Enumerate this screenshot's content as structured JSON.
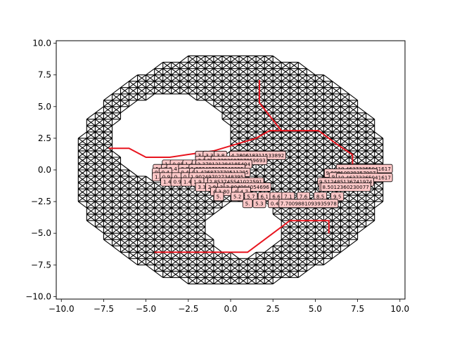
{
  "chart_data": {
    "type": "scatter",
    "title": "",
    "xlabel": "",
    "ylabel": "",
    "xlim": [
      -10.3,
      10.3
    ],
    "ylim": [
      -10.2,
      10.2
    ],
    "xticks": [
      -10.0,
      -7.5,
      -5.0,
      -2.5,
      0.0,
      2.5,
      5.0,
      7.5,
      10.0
    ],
    "yticks": [
      -10.0,
      -7.5,
      -5.0,
      -2.5,
      0.0,
      2.5,
      5.0,
      7.5,
      10.0
    ],
    "xtick_labels": [
      "−10.0",
      "−7.5",
      "−5.0",
      "−2.5",
      "0.0",
      "2.5",
      "5.0",
      "7.5",
      "10.0"
    ],
    "ytick_labels": [
      "−10.0",
      "−7.5",
      "−5.0",
      "−2.5",
      "0.0",
      "2.5",
      "5.0",
      "7.5",
      "10.0"
    ],
    "grid": false,
    "mesh": {
      "spacing": 0.5,
      "outer_radius": 9.4,
      "edge_color": "#000000",
      "holes": [
        {
          "center": [
            -3.5,
            2.5
          ],
          "radius": 3.3
        },
        {
          "center": [
            0.8,
            -4.6
          ],
          "radius": 2.0
        }
      ]
    },
    "path": {
      "color": "#e8141e",
      "points": [
        [
          -7.2,
          1.7
        ],
        [
          -6.0,
          1.7
        ],
        [
          -5.0,
          1.0
        ],
        [
          -3.6,
          1.0
        ],
        [
          -2.6,
          1.2
        ],
        [
          -1.0,
          1.5
        ],
        [
          1.5,
          2.5
        ],
        [
          2.3,
          3.1
        ],
        [
          5.2,
          3.1
        ],
        [
          6.2,
          2.1
        ],
        [
          7.2,
          1.2
        ],
        [
          7.2,
          0.0
        ]
      ],
      "branches": [
        [
          [
            1.7,
            7.1
          ],
          [
            1.7,
            5.3
          ],
          [
            3.0,
            3.1
          ]
        ],
        [
          [
            -4.5,
            -6.5
          ],
          [
            1.0,
            -6.5
          ],
          [
            3.5,
            -4.0
          ],
          [
            5.8,
            -4.0
          ],
          [
            5.8,
            -5.0
          ]
        ]
      ]
    },
    "annotations": {
      "box_color": "#ffc8c8",
      "labels": [
        {
          "x": -1.7,
          "y": 1.15,
          "text": "3.3"
        },
        {
          "x": -1.25,
          "y": 1.15,
          "text": "3.3"
        },
        {
          "x": -0.6,
          "y": 1.15,
          "text": "3.8"
        },
        {
          "x": 1.6,
          "y": 1.15,
          "text": "4.280618311533892"
        },
        {
          "x": -1.7,
          "y": 0.75,
          "text": "3.3"
        },
        {
          "x": -1.25,
          "y": 0.75,
          "text": "2."
        },
        {
          "x": 0.5,
          "y": 0.75,
          "text": "3.329369797859693"
        },
        {
          "x": -3.75,
          "y": 0.45,
          "text": "1."
        },
        {
          "x": -3.1,
          "y": 0.45,
          "text": "0.95"
        },
        {
          "x": -2.45,
          "y": 0.45,
          "text": "1.4"
        },
        {
          "x": -1.9,
          "y": 0.45,
          "text": "1.9"
        },
        {
          "x": -0.4,
          "y": 0.45,
          "text": "2.378121284185494"
        },
        {
          "x": -4.2,
          "y": 0.1,
          "text": "1.4"
        },
        {
          "x": -3.8,
          "y": 0.1,
          "text": "0."
        },
        {
          "x": -3.4,
          "y": 0.1,
          "text": "0.4"
        },
        {
          "x": -2.7,
          "y": 0.1,
          "text": "0.9"
        },
        {
          "x": -2.05,
          "y": 0.1,
          "text": "1.4"
        },
        {
          "x": -0.8,
          "y": 0.1,
          "text": "1.902497027348395"
        },
        {
          "x": -4.25,
          "y": -0.2,
          "text": "0.9"
        },
        {
          "x": -3.85,
          "y": -0.2,
          "text": "0.4"
        },
        {
          "x": -2.7,
          "y": -0.2,
          "text": "0.4"
        },
        {
          "x": -2.05,
          "y": -0.2,
          "text": "0.9"
        },
        {
          "x": -0.5,
          "y": -0.2,
          "text": "1.426872770511295"
        },
        {
          "x": -4.25,
          "y": -0.55,
          "text": "1.4"
        },
        {
          "x": -3.8,
          "y": -0.55,
          "text": "0.9"
        },
        {
          "x": -3.2,
          "y": -0.55,
          "text": "0."
        },
        {
          "x": -2.55,
          "y": -0.55,
          "text": "0.9"
        },
        {
          "x": -1.95,
          "y": -0.55,
          "text": "1.4"
        },
        {
          "x": -0.8,
          "y": -0.55,
          "text": "1.902497027348395"
        },
        {
          "x": -3.75,
          "y": -0.95,
          "text": "1.4"
        },
        {
          "x": -3.15,
          "y": -0.95,
          "text": "0.9"
        },
        {
          "x": -2.55,
          "y": -0.95,
          "text": "1.4"
        },
        {
          "x": -1.95,
          "y": -0.95,
          "text": "1.9"
        },
        {
          "x": -1.2,
          "y": -0.95,
          "text": "2.3"
        },
        {
          "x": 0.3,
          "y": -0.95,
          "text": "2.853745541022591"
        },
        {
          "x": -1.7,
          "y": -1.35,
          "text": "3.3"
        },
        {
          "x": -1.1,
          "y": -1.35,
          "text": "2.8"
        },
        {
          "x": -0.4,
          "y": -1.35,
          "text": "3.3"
        },
        {
          "x": 1.0,
          "y": -1.35,
          "text": "3.804994054696"
        },
        {
          "x": -0.9,
          "y": -1.7,
          "text": "4."
        },
        {
          "x": -0.4,
          "y": -1.7,
          "text": "3.80"
        },
        {
          "x": 0.35,
          "y": -1.7,
          "text": "4."
        },
        {
          "x": 0.8,
          "y": -1.7,
          "text": "4.7"
        },
        {
          "x": -0.7,
          "y": -2.1,
          "text": "5."
        },
        {
          "x": 0.4,
          "y": -2.1,
          "text": "5.2"
        },
        {
          "x": 1.2,
          "y": -2.1,
          "text": "5.7"
        },
        {
          "x": 2.0,
          "y": -2.1,
          "text": "6.1"
        },
        {
          "x": 2.7,
          "y": -2.1,
          "text": "6.6"
        },
        {
          "x": 3.4,
          "y": -2.1,
          "text": "7.1"
        },
        {
          "x": 4.3,
          "y": -2.1,
          "text": "7.6"
        },
        {
          "x": 5.3,
          "y": -2.1,
          "text": "8.5"
        },
        {
          "x": 6.3,
          "y": -2.1,
          "text": "9.5"
        },
        {
          "x": 7.9,
          "y": 0.1,
          "text": "10.46373365041617"
        },
        {
          "x": 7.1,
          "y": -0.25,
          "text": "9.98810939357907"
        },
        {
          "x": 6.2,
          "y": -0.55,
          "text": "9.5"
        },
        {
          "x": 7.9,
          "y": -0.6,
          "text": "10.46373365041617"
        },
        {
          "x": 5.6,
          "y": -0.95,
          "text": "8.5"
        },
        {
          "x": 6.8,
          "y": -0.95,
          "text": "9.512485136741974"
        },
        {
          "x": 5.6,
          "y": -1.35,
          "text": "8.0"
        },
        {
          "x": 6.8,
          "y": -1.35,
          "text": "8.5012360230077"
        },
        {
          "x": 2.6,
          "y": -2.65,
          "text": "0.4"
        },
        {
          "x": 3.6,
          "y": -2.65,
          "text": "7.17"
        },
        {
          "x": 4.6,
          "y": -2.65,
          "text": "7.7009881093935978"
        },
        {
          "x": 1.0,
          "y": -2.65,
          "text": "5."
        },
        {
          "x": 1.7,
          "y": -2.65,
          "text": "5.3"
        }
      ]
    }
  }
}
